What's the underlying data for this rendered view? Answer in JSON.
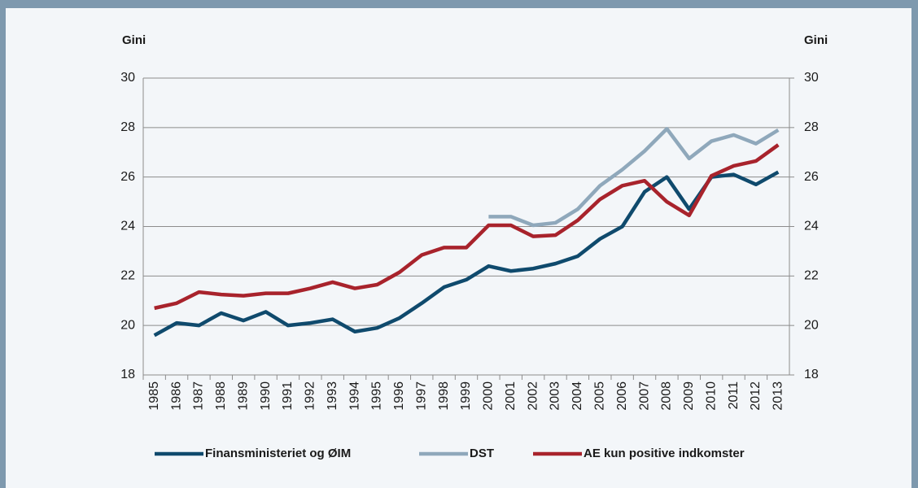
{
  "chart_data": {
    "type": "line",
    "y_label": "Gini",
    "y2_label": "Gini",
    "categories": [
      "1985",
      "1986",
      "1987",
      "1988",
      "1989",
      "1990",
      "1991",
      "1992",
      "1993",
      "1994",
      "1995",
      "1996",
      "1997",
      "1998",
      "1999",
      "2000",
      "2001",
      "2002",
      "2003",
      "2004",
      "2005",
      "2006",
      "2007",
      "2008",
      "2009",
      "2010",
      "2011",
      "2012",
      "2013"
    ],
    "series": [
      {
        "name": "Finansministeriet og ØIM",
        "color": "#0f4a6d",
        "values": [
          19.6,
          20.1,
          20.0,
          20.5,
          20.2,
          20.55,
          20.0,
          20.1,
          20.25,
          19.75,
          19.9,
          20.3,
          20.9,
          21.55,
          21.85,
          22.4,
          22.2,
          22.3,
          22.5,
          22.8,
          23.5,
          24.0,
          25.4,
          26.0,
          24.7,
          26.0,
          26.1,
          25.7,
          26.2
        ]
      },
      {
        "name": "DST",
        "color": "#8fa8bb",
        "values": [
          null,
          null,
          null,
          null,
          null,
          null,
          null,
          null,
          null,
          null,
          null,
          null,
          null,
          null,
          null,
          24.4,
          24.4,
          24.05,
          24.15,
          24.7,
          25.65,
          26.3,
          27.05,
          27.95,
          26.75,
          27.45,
          27.7,
          27.35,
          27.9
        ]
      },
      {
        "name": "AE kun positive indkomster",
        "color": "#a8232c",
        "values": [
          20.7,
          20.9,
          21.35,
          21.25,
          21.2,
          21.3,
          21.3,
          21.5,
          21.75,
          21.5,
          21.65,
          22.15,
          22.85,
          23.15,
          23.15,
          24.05,
          24.05,
          23.6,
          23.65,
          24.25,
          25.1,
          25.65,
          25.85,
          25.0,
          24.45,
          26.05,
          26.45,
          26.65,
          27.3
        ]
      }
    ],
    "ylim": [
      18,
      30
    ],
    "yticks": [
      18,
      20,
      22,
      24,
      26,
      28,
      30
    ],
    "y2lim": [
      18,
      30
    ],
    "y2ticks": [
      18,
      20,
      22,
      24,
      26,
      28,
      30
    ],
    "grid": true,
    "legend": "bottom"
  }
}
